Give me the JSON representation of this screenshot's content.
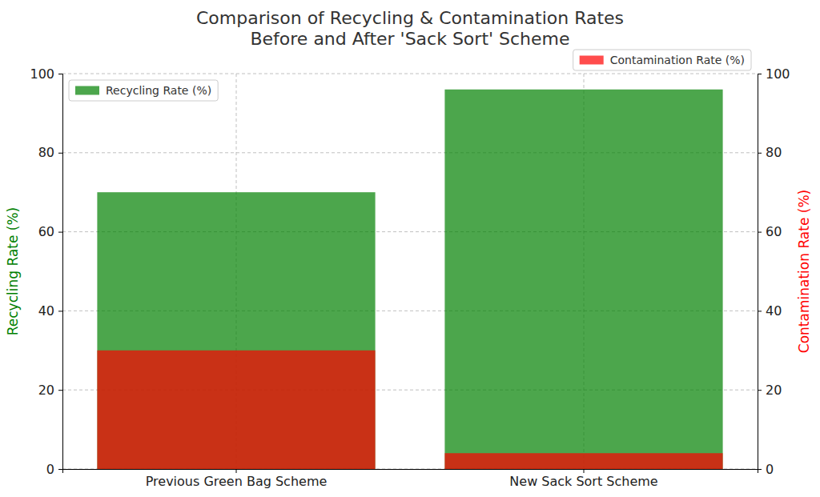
{
  "chart_data": {
    "type": "bar",
    "title": "Comparison of Recycling & Contamination Rates\nBefore and After 'Sack Sort' Scheme",
    "y_label": "Recycling Rate (%)",
    "y2_label": "Contamination Rate (%)",
    "categories": [
      "Previous Green Bag Scheme",
      "New Sack Sort Scheme"
    ],
    "series": [
      {
        "name": "Recycling Rate (%)",
        "color": "green",
        "values": [
          70,
          96
        ],
        "legend": "upper left"
      },
      {
        "name": "Contamination Rate (%)",
        "color": "red",
        "values": [
          30,
          4
        ],
        "axis": "y2",
        "legend": "upper right"
      }
    ],
    "ylim": [
      0,
      100
    ],
    "yticks": [
      0,
      20,
      40,
      60,
      80,
      100
    ],
    "y2lim": [
      0,
      100
    ],
    "y2ticks": [
      0,
      20,
      40,
      60,
      80,
      100
    ],
    "grid": true
  }
}
